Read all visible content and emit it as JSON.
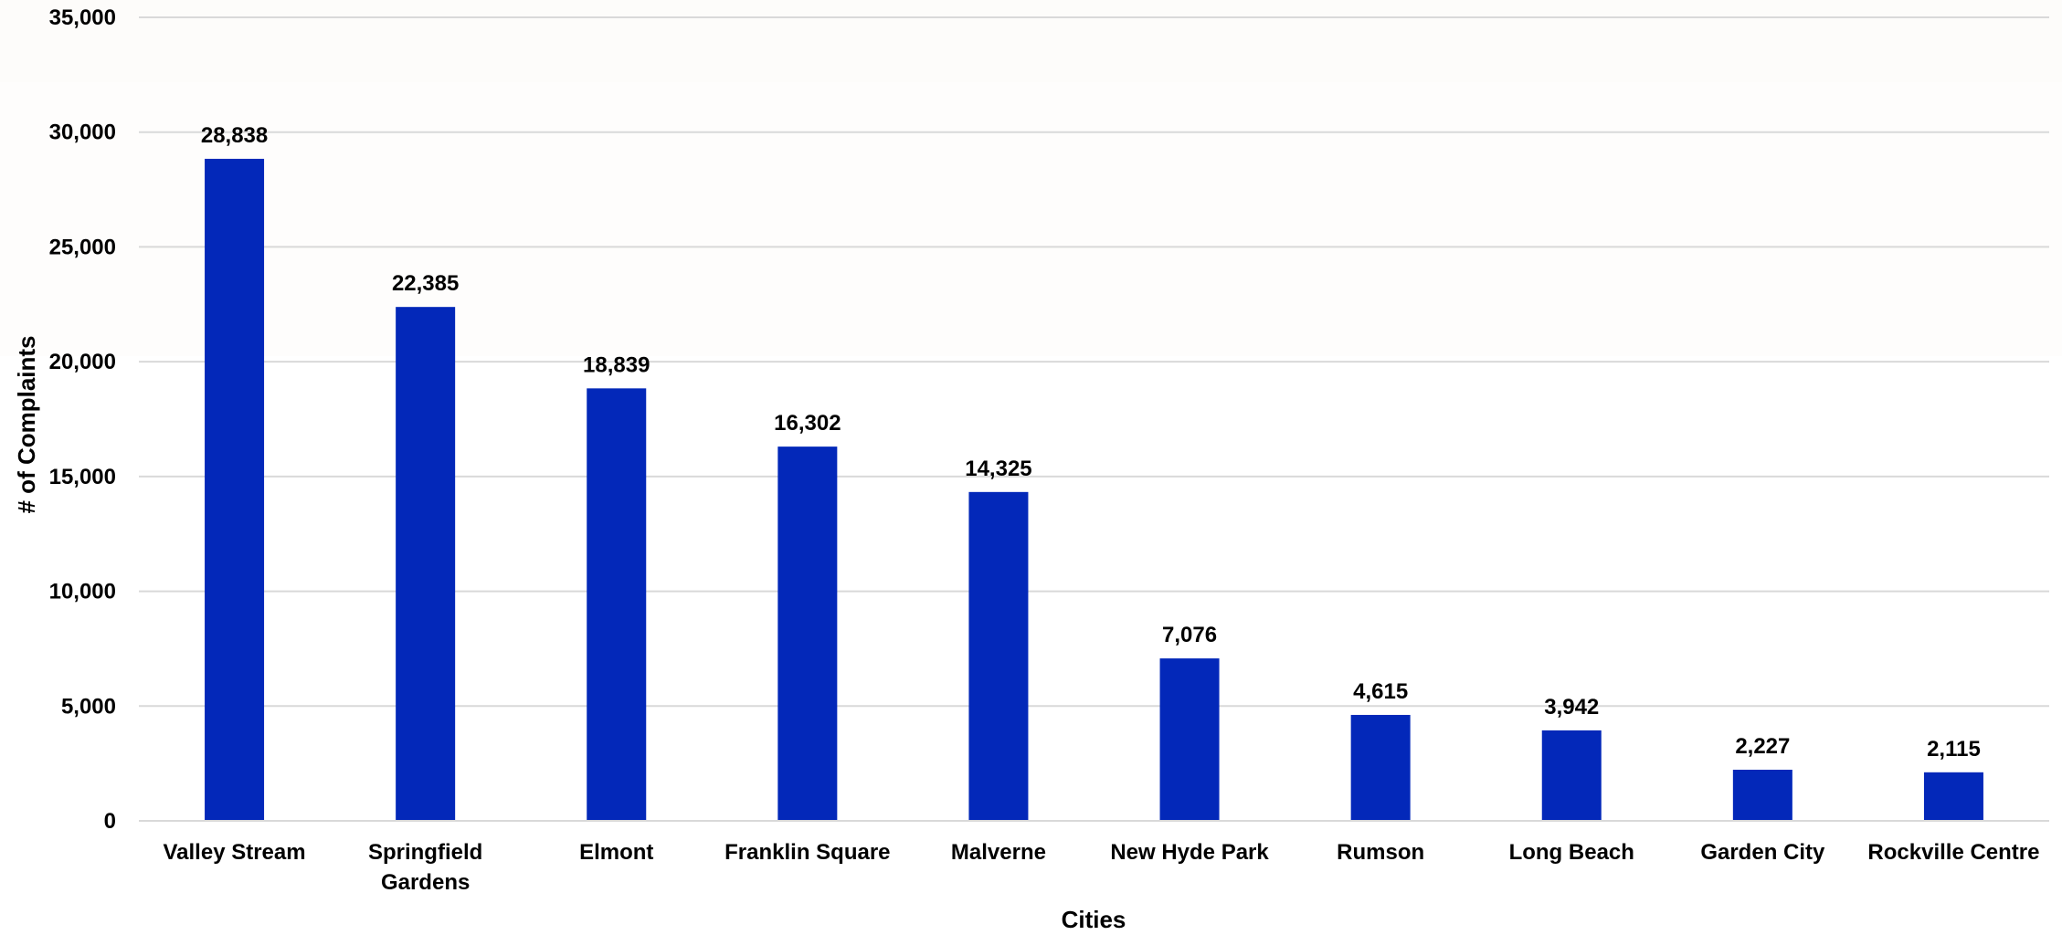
{
  "chart_data": {
    "type": "bar",
    "title": "",
    "xlabel": "Cities",
    "ylabel": "# of Complaints",
    "ylim": [
      0,
      35000
    ],
    "yticks": [
      0,
      5000,
      10000,
      15000,
      20000,
      25000,
      30000,
      35000
    ],
    "ytick_labels": [
      "0",
      "5,000",
      "10,000",
      "15,000",
      "20,000",
      "25,000",
      "30,000",
      "35,000"
    ],
    "grid": true,
    "legend": "none",
    "bar_color": "#0328b9",
    "categories": [
      [
        "Valley Stream"
      ],
      [
        "Springfield",
        "Gardens"
      ],
      [
        "Elmont"
      ],
      [
        "Franklin Square"
      ],
      [
        "Malverne"
      ],
      [
        "New Hyde Park"
      ],
      [
        "Rumson"
      ],
      [
        "Long Beach"
      ],
      [
        "Garden City"
      ],
      [
        "Rockville Centre"
      ]
    ],
    "values": [
      28838,
      22385,
      18839,
      16302,
      14325,
      7076,
      4615,
      3942,
      2227,
      2115
    ],
    "value_labels": [
      "28,838",
      "22,385",
      "18,839",
      "16,302",
      "14,325",
      "7,076",
      "4,615",
      "3,942",
      "2,227",
      "2,115"
    ]
  }
}
